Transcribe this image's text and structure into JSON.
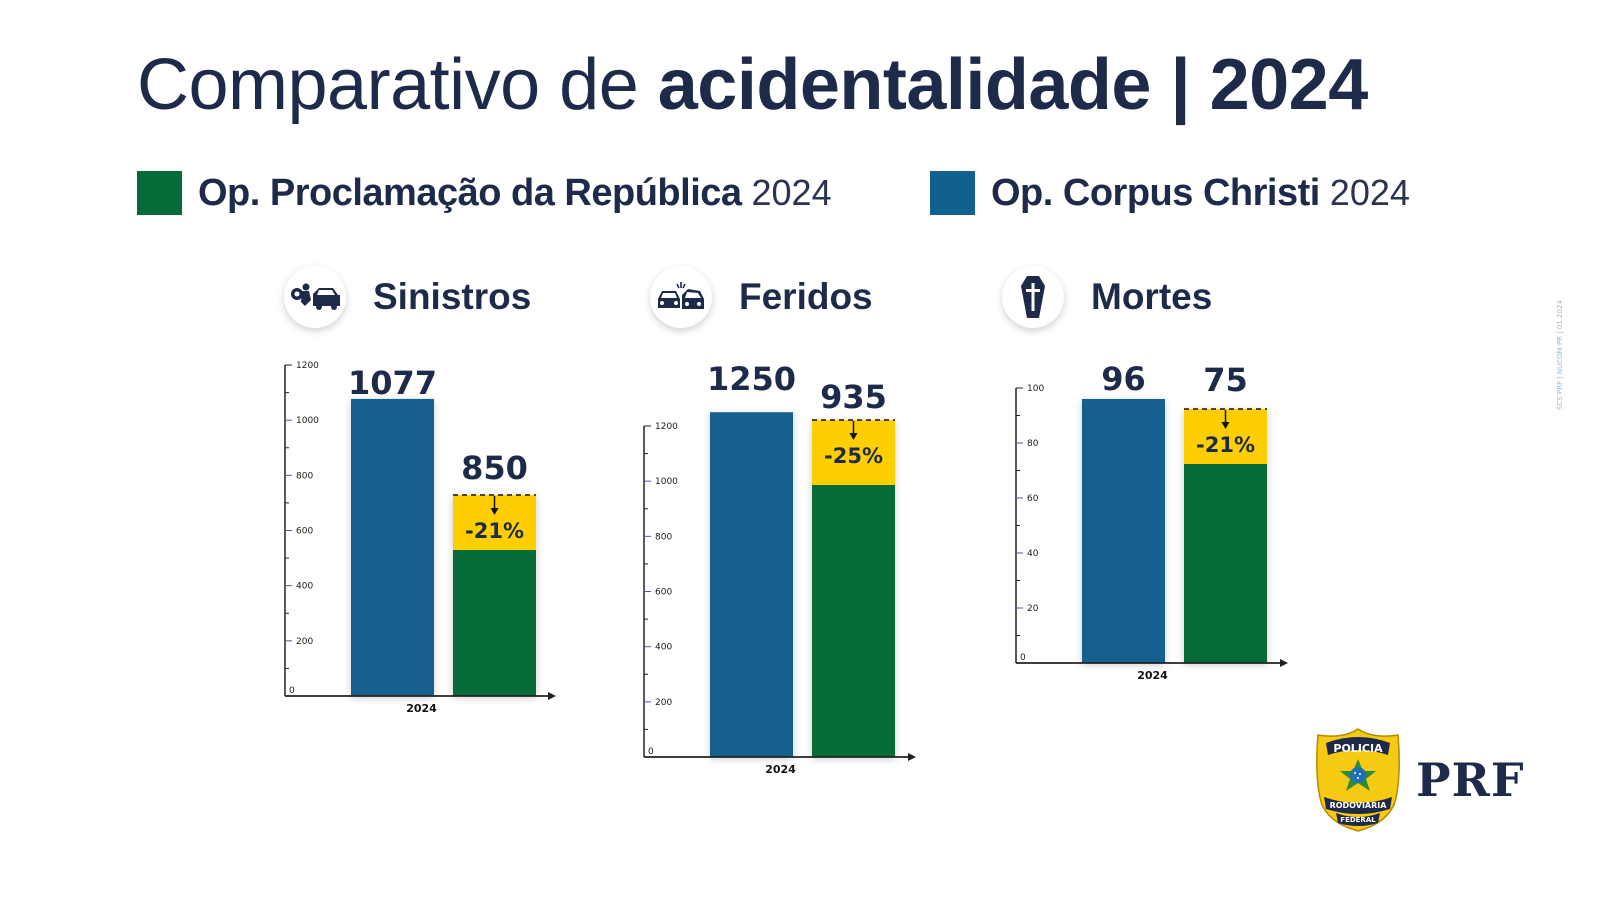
{
  "title": {
    "light": "Comparativo de ",
    "bold": "acidentalidade | 2024"
  },
  "colors": {
    "corpus_christi": "#12608f",
    "proclamacao": "#056b39",
    "reduction": "#fecf06",
    "text": "#1e2a4a"
  },
  "legend": [
    {
      "name": "Op. Proclamação da República",
      "year": "2024",
      "color": "#056b39"
    },
    {
      "name": "Op. Corpus Christi",
      "year": "2024",
      "color": "#12608f"
    }
  ],
  "categories": [
    {
      "label": "Sinistros",
      "icon": "car-crash-icon"
    },
    {
      "label": "Feridos",
      "icon": "car-collision-icon"
    },
    {
      "label": "Mortes",
      "icon": "coffin-icon"
    }
  ],
  "chart_data": [
    {
      "type": "bar",
      "title": "Sinistros",
      "categories": [
        "2024"
      ],
      "series": [
        {
          "name": "Op. Corpus Christi 2024",
          "values": [
            1077
          ]
        },
        {
          "name": "Op. Proclamação da República 2024",
          "values": [
            850
          ]
        }
      ],
      "value_labels": [
        "1077",
        "850"
      ],
      "annotation": "-21%",
      "yticks": [
        0,
        200,
        400,
        600,
        800,
        1000,
        1200
      ],
      "ylim": [
        0,
        1200
      ],
      "xlabel": "2024"
    },
    {
      "type": "bar",
      "title": "Feridos",
      "categories": [
        "2024"
      ],
      "series": [
        {
          "name": "Op. Corpus Christi 2024",
          "values": [
            1250
          ]
        },
        {
          "name": "Op. Proclamação da República 2024",
          "values": [
            935
          ]
        }
      ],
      "value_labels": [
        "1250",
        "935"
      ],
      "annotation": "-25%",
      "yticks": [
        0,
        200,
        400,
        600,
        800,
        1000,
        1200
      ],
      "ylim": [
        0,
        1200
      ],
      "xlabel": "2024"
    },
    {
      "type": "bar",
      "title": "Mortes",
      "categories": [
        "2024"
      ],
      "series": [
        {
          "name": "Op. Corpus Christi 2024",
          "values": [
            96
          ]
        },
        {
          "name": "Op. Proclamação da República 2024",
          "values": [
            75
          ]
        }
      ],
      "value_labels": [
        "96",
        "75"
      ],
      "annotation": "-21%",
      "yticks": [
        0,
        20,
        40,
        60,
        80,
        100
      ],
      "ylim": [
        0,
        100
      ],
      "xlabel": "2024"
    }
  ],
  "footer": {
    "side_note": "SCS PRF | NUCOM PR | 01.2024",
    "logo_text": "PRF",
    "badge_top": "POLICIA",
    "badge_bottom1": "RODOVIÁRIA",
    "badge_bottom2": "FEDERAL"
  }
}
